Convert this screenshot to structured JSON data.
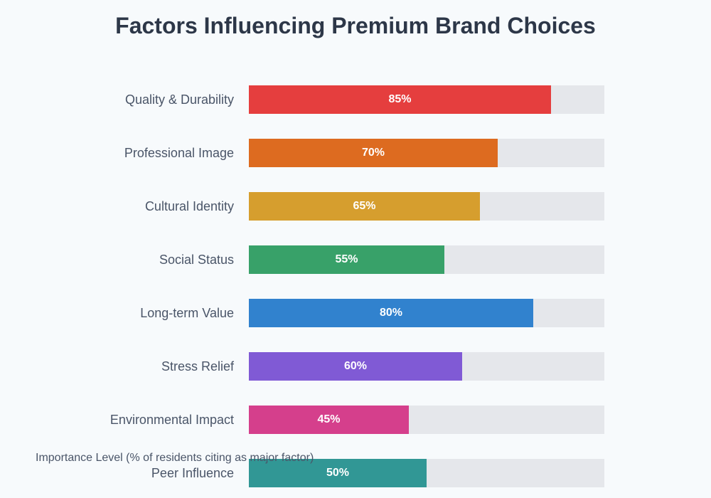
{
  "chart_data": {
    "type": "bar",
    "orientation": "horizontal",
    "title": "Factors Influencing Premium Brand Choices",
    "xlabel": "Importance Level (% of residents citing as major factor)",
    "xlim": [
      0,
      100
    ],
    "grid": false,
    "categories": [
      "Quality & Durability",
      "Professional Image",
      "Cultural Identity",
      "Social Status",
      "Long-term Value",
      "Stress Relief",
      "Environmental Impact",
      "Peer Influence"
    ],
    "values": [
      85,
      70,
      65,
      55,
      80,
      60,
      45,
      50
    ],
    "labels": [
      "85%",
      "70%",
      "65%",
      "55%",
      "80%",
      "60%",
      "45%",
      "50%"
    ],
    "colors": [
      "#e53e3e",
      "#dd6b20",
      "#d69e2e",
      "#38a169",
      "#3182ce",
      "#805ad5",
      "#d53f8c",
      "#319795"
    ],
    "track_color": "#e5e7eb"
  }
}
